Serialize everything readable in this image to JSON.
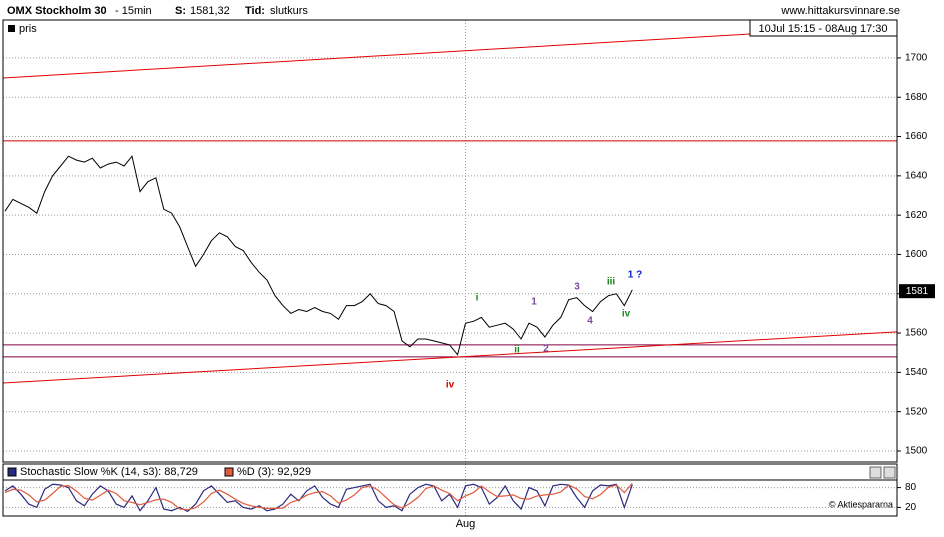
{
  "header": {
    "title": "OMX Stockholm 30",
    "interval": "- 15min",
    "price_label": "S:",
    "price": "1581,32",
    "time_label": "Tid:",
    "time": "slutkurs",
    "site": "www.hittakursvinnare.se",
    "range": "10Jul 15:15 - 08Aug 17:30"
  },
  "chart_data": [
    {
      "type": "line",
      "legend": "pris",
      "color": "#000000",
      "categories": [
        null,
        null,
        null,
        null,
        null,
        null,
        null,
        null,
        null,
        null,
        null,
        null,
        null,
        null,
        null,
        null,
        null,
        null,
        null,
        null,
        null,
        null,
        null,
        null,
        null,
        null,
        null,
        null,
        null,
        null,
        null,
        null,
        null,
        null,
        null,
        null,
        null,
        null,
        null,
        null,
        null,
        null,
        null,
        null,
        null,
        null,
        null,
        null,
        null,
        null,
        null,
        null,
        null,
        null,
        null,
        null,
        null,
        null,
        "Aug",
        null,
        null,
        null,
        null,
        null,
        null,
        null,
        null,
        null,
        null,
        null,
        null,
        null,
        null,
        null,
        null,
        null,
        null,
        null,
        null,
        null
      ],
      "values": [
        1622,
        1628,
        1626,
        1624,
        1621,
        1632,
        1640,
        1645,
        1650,
        1648,
        1647,
        1649,
        1644,
        1646,
        1647,
        1645,
        1650,
        1632,
        1637,
        1639,
        1623,
        1621,
        1614,
        1604,
        1594,
        1600,
        1607,
        1611,
        1609,
        1604,
        1602,
        1596,
        1591,
        1587,
        1579,
        1574,
        1570,
        1572,
        1571,
        1573,
        1571,
        1570,
        1567,
        1574,
        1574,
        1576,
        1580,
        1575,
        1574,
        1571,
        1556,
        1553,
        1557,
        1557,
        1556,
        1555,
        1554,
        1549,
        1565,
        1566,
        1568,
        1563,
        1564,
        1565,
        1562,
        1557,
        1565,
        1563,
        1558,
        1564,
        1568,
        1577,
        1578,
        1574,
        1571,
        1576,
        1579,
        1580,
        1574,
        1582
      ],
      "current_tick": {
        "value": 1581.32,
        "label": "1581"
      },
      "ylim": [
        1494.4,
        1719.3
      ],
      "yticks": [
        1500,
        1520,
        1540,
        1560,
        1580,
        1600,
        1620,
        1640,
        1660,
        1680,
        1700
      ],
      "grid": true,
      "trendlines": [
        {
          "start": 1689.8,
          "end": 1716.6,
          "color": "#e00000"
        },
        {
          "start": 1534.6,
          "end": 1560.6,
          "color": "#e00000"
        }
      ],
      "levels": [
        {
          "value": 1657.8,
          "color": "#cc0000"
        },
        {
          "value": 1554.0,
          "color": "#800040"
        },
        {
          "value": 1547.9,
          "color": "#800040"
        }
      ],
      "annotations": [
        {
          "text": "iv",
          "color": "#dd0000"
        },
        {
          "text": "i",
          "color": "#1a8a1a"
        },
        {
          "text": "ii",
          "color": "#1a8a1a"
        },
        {
          "text": "1",
          "color": "#7a4a9a"
        },
        {
          "text": "2",
          "color": "#7a4a9a"
        },
        {
          "text": "3",
          "color": "#7a4a9a"
        },
        {
          "text": "4",
          "color": "#7a4a9a"
        },
        {
          "text": "iii",
          "color": "#1a8a1a"
        },
        {
          "text": "iv",
          "color": "#1a8a1a"
        },
        {
          "text": "1 ?",
          "color": "#1020d0"
        }
      ]
    },
    {
      "type": "line",
      "ylim": [
        0,
        100
      ],
      "yticks": [
        20,
        80
      ],
      "credit": "© Aktiespararna",
      "series": [
        {
          "name": "Stochastic Slow %K (14, s3): 88,729",
          "color": "#2a2a80",
          "values": [
            70,
            85,
            60,
            30,
            20,
            75,
            90,
            88,
            80,
            40,
            25,
            60,
            85,
            70,
            30,
            20,
            55,
            10,
            40,
            80,
            15,
            10,
            20,
            8,
            30,
            70,
            85,
            60,
            35,
            40,
            20,
            15,
            25,
            10,
            15,
            30,
            60,
            40,
            70,
            85,
            50,
            30,
            20,
            75,
            80,
            85,
            90,
            40,
            20,
            25,
            10,
            60,
            80,
            90,
            85,
            40,
            60,
            20,
            85,
            90,
            80,
            30,
            50,
            85,
            40,
            15,
            80,
            70,
            25,
            85,
            90,
            88,
            50,
            20,
            70,
            88,
            85,
            90,
            20,
            88.729
          ]
        },
        {
          "name": "%D (3): 92,929",
          "color": "#e05a3c",
          "values": [
            65,
            75,
            72,
            58,
            37,
            42,
            62,
            84,
            86,
            69,
            48,
            42,
            57,
            72,
            62,
            40,
            35,
            28,
            35,
            43,
            45,
            35,
            15,
            13,
            19,
            36,
            62,
            72,
            60,
            45,
            32,
            25,
            20,
            17,
            17,
            18,
            35,
            43,
            57,
            65,
            68,
            55,
            33,
            42,
            58,
            80,
            85,
            72,
            50,
            28,
            18,
            32,
            50,
            77,
            85,
            72,
            62,
            40,
            55,
            65,
            85,
            67,
            53,
            55,
            58,
            47,
            45,
            55,
            58,
            60,
            67,
            88,
            76,
            53,
            46,
            59,
            81,
            88,
            65,
            92.929
          ]
        }
      ]
    }
  ]
}
